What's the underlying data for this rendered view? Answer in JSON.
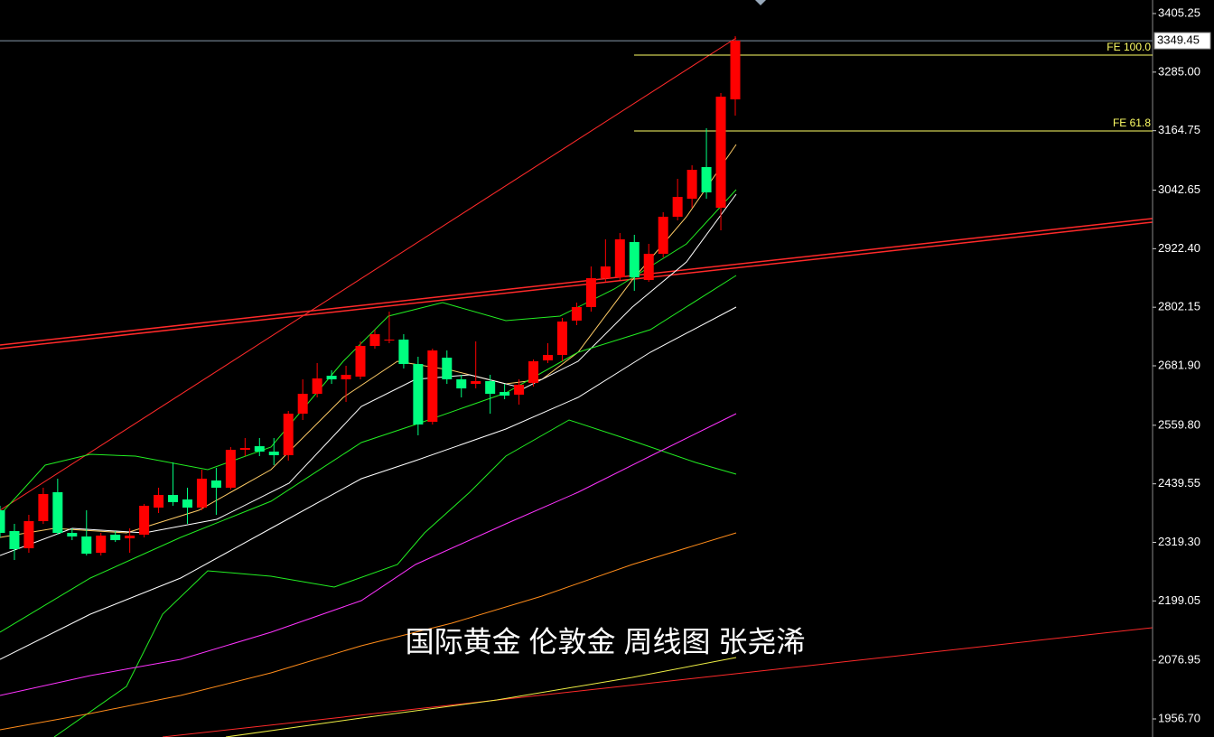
{
  "chart_data": {
    "type": "candlestick",
    "title": "国际黄金 伦敦金 周线图 张尧浠",
    "ylim": [
      1919.6,
      3433.1
    ],
    "yticks": [
      3405.25,
      {
        "value": 3285.0,
        "label": "3285.00"
      },
      3164.75,
      3042.65,
      {
        "value": 2922.4,
        "label": "2922.40"
      },
      2802.15,
      {
        "value": 2681.9,
        "label": "2681.90"
      },
      {
        "value": 2559.8,
        "label": "2559.80"
      },
      2439.55,
      {
        "value": 2319.3,
        "label": "2319.30"
      },
      2199.05,
      2076.95,
      {
        "value": 1956.7,
        "label": "1956.70"
      }
    ],
    "current_price": 3349.45,
    "levels": [
      {
        "label": "FE 100.0",
        "value": 3320.0,
        "color": "#ffff66"
      },
      {
        "label": "FE 61.8",
        "value": 3164.1,
        "color": "#ffff66"
      }
    ],
    "up_color": "#ff0000",
    "down_color": "#00ff80",
    "open": [
      2385.2,
      2342.5,
      2307.2,
      2362.9,
      2422.3,
      2338.8,
      2331.4,
      2297.9,
      2335.1,
      2327.6,
      2335.1,
      2390.7,
      2416.7,
      2407.4,
      2390.7,
      2446.4,
      2431.5,
      2509.4,
      2516.8,
      2505.7,
      2498.3,
      2583.6,
      2624.4,
      2661.5,
      2654.1,
      2659.7,
      2722.7,
      2733.8,
      2735.7,
      2685.6,
      2566.9,
      2698.6,
      2654.1,
      2644.8,
      2650.4,
      2628.1,
      2622.6,
      2646.7,
      2693.0,
      2704.2,
      2774.7,
      2802.5,
      2861.8,
      2863.7,
      2936.0,
      2858.1,
      2911.9,
      2988.0,
      3025.0,
      3090.0,
      3006.5,
      3229.0
    ],
    "high": [
      2394.4,
      2357.3,
      2375.9,
      2431.5,
      2450.1,
      2348.1,
      2385.2,
      2338.8,
      2342.5,
      2348.1,
      2398.2,
      2431.5,
      2483.4,
      2431.5,
      2468.6,
      2472.3,
      2515.0,
      2533.6,
      2533.6,
      2533.6,
      2589.2,
      2654.1,
      2687.5,
      2672.7,
      2681.9,
      2732.0,
      2756.1,
      2793.2,
      2746.8,
      2700.5,
      2717.1,
      2713.4,
      2663.4,
      2732.0,
      2663.4,
      2644.8,
      2654.1,
      2694.9,
      2728.3,
      2780.2,
      2811.6,
      2885.9,
      2941.6,
      2954.6,
      2950.9,
      2932.3,
      2997.2,
      3065.8,
      3093.7,
      3169.7,
      3242.0,
      3358.9
    ],
    "low": [
      2329.5,
      2283.1,
      2297.9,
      2357.3,
      2335.1,
      2323.9,
      2292.4,
      2292.4,
      2320.2,
      2297.9,
      2329.5,
      2379.6,
      2394.4,
      2357.3,
      2385.2,
      2375.9,
      2427.8,
      2496.4,
      2496.4,
      2477.9,
      2487.2,
      2570.6,
      2617.0,
      2644.8,
      2607.7,
      2654.1,
      2717.1,
      2728.3,
      2676.4,
      2539.1,
      2561.4,
      2644.8,
      2617.0,
      2635.5,
      2583.6,
      2613.3,
      2602.2,
      2639.3,
      2687.5,
      2691.2,
      2765.4,
      2793.2,
      2854.4,
      2858.1,
      2835.9,
      2854.4,
      2904.5,
      2980.5,
      3006.5,
      3025.0,
      2960.1,
      3195.7
    ],
    "close": [
      2338.8,
      2305.4,
      2362.9,
      2418.6,
      2338.8,
      2331.4,
      2296.1,
      2333.2,
      2323.9,
      2333.2,
      2394.4,
      2416.7,
      2401.9,
      2390.7,
      2450.1,
      2431.5,
      2509.4,
      2513.1,
      2505.7,
      2498.3,
      2583.6,
      2624.4,
      2656.0,
      2654.1,
      2663.4,
      2722.7,
      2746.8,
      2735.7,
      2685.6,
      2561.4,
      2713.4,
      2654.1,
      2635.5,
      2650.4,
      2624.4,
      2620.7,
      2643.0,
      2691.2,
      2704.2,
      2772.8,
      2802.5,
      2861.8,
      2885.9,
      2941.6,
      2863.7,
      2911.9,
      2988.0,
      3028.7,
      3084.4,
      3038.0,
      3234.6,
      3349.6
    ]
  }
}
